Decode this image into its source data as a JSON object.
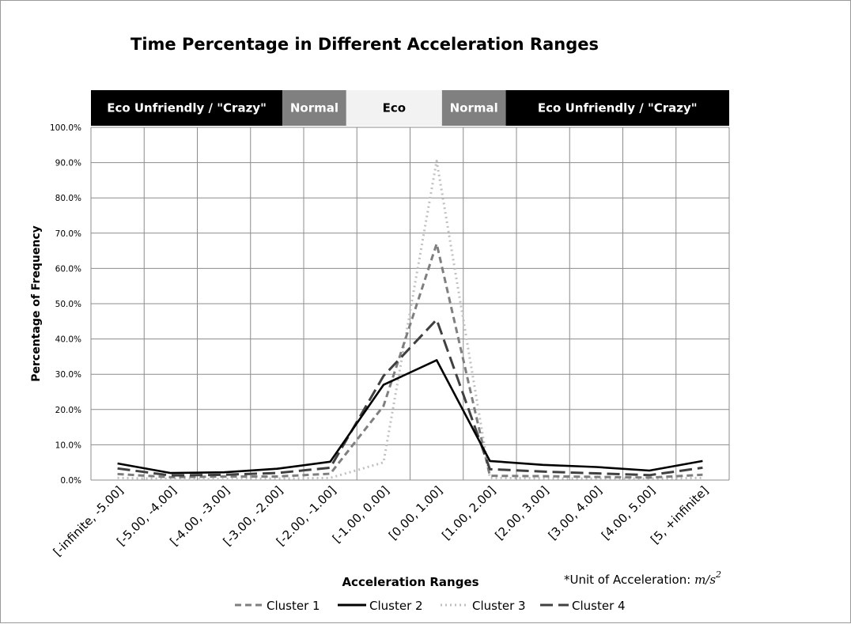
{
  "chart_data": {
    "type": "line",
    "title": "Time Percentage in Different Acceleration Ranges",
    "xlabel": "Acceleration Ranges",
    "ylabel": "Percentage of Frequency",
    "unit_note_prefix": "*Unit of Acceleration: ",
    "unit_note_unit": "m/s",
    "unit_note_exp": "2",
    "categories": [
      "[-infinite, -5.00]",
      "[-5.00, -4.00]",
      "[-4.00, -3.00]",
      "[-3.00, -2.00]",
      "[-2.00, -1.00]",
      "[-1.00, 0.00]",
      "[0.00, 1.00]",
      "[1.00, 2.00]",
      "[2.00, 3.00]",
      "[3.00, 4.00]",
      "[4.00, 5.00]",
      "[5, +infinite]"
    ],
    "yticks": [
      "0.0%",
      "10.0%",
      "20.0%",
      "30.0%",
      "40.0%",
      "50.0%",
      "60.0%",
      "70.0%",
      "80.0%",
      "90.0%",
      "100.0%"
    ],
    "ylim": [
      0,
      100
    ],
    "grid": true,
    "legend_position": "bottom",
    "bands": [
      {
        "label": "Eco Unfriendly / \"Crazy\"",
        "from": 0,
        "to": 3.6,
        "fill": "#000000",
        "text": "#ffffff"
      },
      {
        "label": "Normal",
        "from": 3.6,
        "to": 4.8,
        "fill": "#808080",
        "text": "#ffffff"
      },
      {
        "label": "Eco",
        "from": 4.8,
        "to": 6.6,
        "fill": "#f2f2f2",
        "text": "#000000"
      },
      {
        "label": "Normal",
        "from": 6.6,
        "to": 7.8,
        "fill": "#808080",
        "text": "#ffffff"
      },
      {
        "label": "Eco Unfriendly / \"Crazy\"",
        "from": 7.8,
        "to": 12,
        "fill": "#000000",
        "text": "#ffffff"
      }
    ],
    "series": [
      {
        "name": "Cluster 1",
        "color": "#7f7f7f",
        "dash": "8,5",
        "values": [
          1.7,
          0.8,
          1.0,
          1.0,
          1.8,
          21.0,
          67.0,
          1.2,
          1.1,
          0.9,
          0.7,
          1.5
        ]
      },
      {
        "name": "Cluster 2",
        "color": "#000000",
        "dash": "",
        "values": [
          4.7,
          2.0,
          2.2,
          3.2,
          5.2,
          27.0,
          34.0,
          5.4,
          4.3,
          3.7,
          2.7,
          5.4
        ]
      },
      {
        "name": "Cluster 3",
        "color": "#c0c0c0",
        "dash": "2,4",
        "values": [
          0.6,
          0.3,
          0.3,
          0.4,
          0.6,
          5.0,
          90.5,
          0.6,
          0.5,
          0.4,
          0.4,
          0.6
        ]
      },
      {
        "name": "Cluster 4",
        "color": "#404040",
        "dash": "16,7",
        "values": [
          3.3,
          1.3,
          1.5,
          2.0,
          3.5,
          29.5,
          45.5,
          3.1,
          2.4,
          1.9,
          1.4,
          3.5
        ]
      }
    ]
  }
}
